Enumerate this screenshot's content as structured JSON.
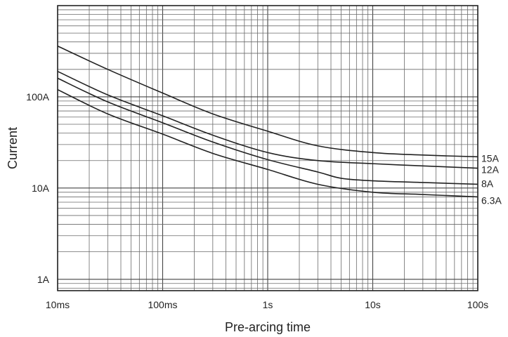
{
  "chart_data": {
    "type": "line",
    "title": "",
    "xlabel": "Pre-arcing time",
    "ylabel": "Current",
    "x_scale": "log",
    "y_scale": "log",
    "xlim": [
      0.01,
      100
    ],
    "ylim": [
      0.75,
      1000
    ],
    "grid": true,
    "legend": "labels at right end of each curve",
    "x_ticks": [
      {
        "value": 0.01,
        "label": "10ms"
      },
      {
        "value": 0.1,
        "label": "100ms"
      },
      {
        "value": 1,
        "label": "1s"
      },
      {
        "value": 10,
        "label": "10s"
      },
      {
        "value": 100,
        "label": "100s"
      }
    ],
    "y_ticks": [
      {
        "value": 1,
        "label": "1A"
      },
      {
        "value": 10,
        "label": "10A"
      },
      {
        "value": 100,
        "label": "100A"
      }
    ],
    "series": [
      {
        "name": "15A",
        "x": [
          0.01,
          0.03,
          0.1,
          0.3,
          1,
          3,
          10,
          30,
          100
        ],
        "y": [
          360,
          200,
          110,
          65,
          42,
          29,
          24.5,
          23,
          22
        ]
      },
      {
        "name": "12A",
        "x": [
          0.01,
          0.03,
          0.1,
          0.3,
          1,
          3,
          10,
          30,
          100
        ],
        "y": [
          190,
          105,
          62,
          38,
          24.5,
          20,
          18.5,
          17.5,
          16.5
        ]
      },
      {
        "name": "8A",
        "x": [
          0.01,
          0.03,
          0.1,
          0.3,
          1,
          3,
          5,
          10,
          30,
          100
        ],
        "y": [
          160,
          88,
          52,
          32,
          20.5,
          15,
          12.8,
          12,
          11.5,
          11
        ]
      },
      {
        "name": "6.3A",
        "x": [
          0.01,
          0.03,
          0.1,
          0.3,
          1,
          3,
          10,
          30,
          100
        ],
        "y": [
          120,
          65,
          39,
          24,
          16,
          11,
          9,
          8.5,
          8
        ]
      }
    ]
  }
}
